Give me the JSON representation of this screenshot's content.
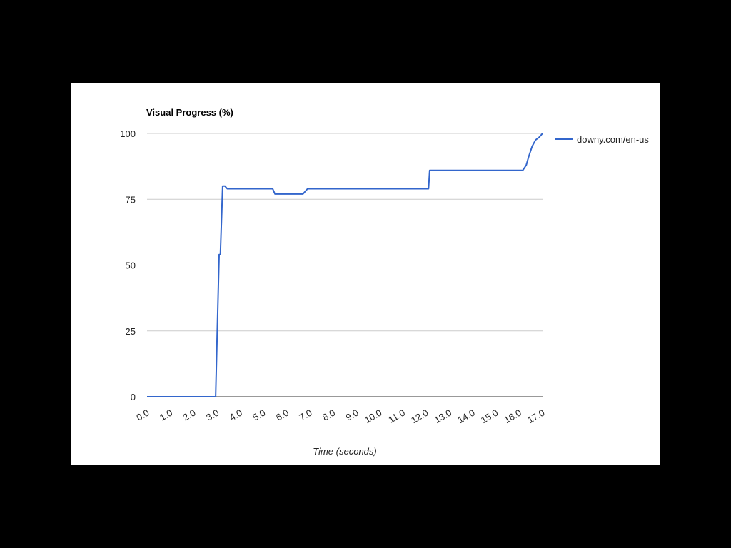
{
  "chart_data": {
    "type": "line",
    "title": "Visual Progress (%)",
    "xlabel": "Time (seconds)",
    "ylabel": "",
    "xlim": [
      0,
      17
    ],
    "ylim": [
      0,
      100
    ],
    "y_ticks": [
      0,
      25,
      50,
      75,
      100
    ],
    "x_ticks": [
      0,
      1,
      2,
      3,
      4,
      5,
      6,
      7,
      8,
      9,
      10,
      11,
      12,
      13,
      14,
      15,
      16,
      17
    ],
    "x_tick_labels": [
      "0.0",
      "1.0",
      "2.0",
      "3.0",
      "4.0",
      "5.0",
      "6.0",
      "7.0",
      "8.0",
      "9.0",
      "10.0",
      "11.0",
      "12.0",
      "13.0",
      "14.0",
      "15.0",
      "16.0",
      "17.0"
    ],
    "grid": true,
    "legend_position": "right",
    "series": [
      {
        "name": "downy.com/en-us",
        "color": "#3366cc",
        "x": [
          0,
          2.95,
          3.1,
          3.15,
          3.25,
          3.35,
          3.45,
          5.4,
          5.5,
          6.7,
          6.9,
          12.1,
          12.15,
          16.15,
          16.3,
          16.4,
          16.55,
          16.7,
          16.85,
          17.0
        ],
        "y": [
          0,
          0,
          54,
          54,
          80,
          80,
          79,
          79,
          77,
          77,
          79,
          79,
          86,
          86,
          88,
          91,
          95,
          97.5,
          98.5,
          100
        ]
      }
    ]
  }
}
